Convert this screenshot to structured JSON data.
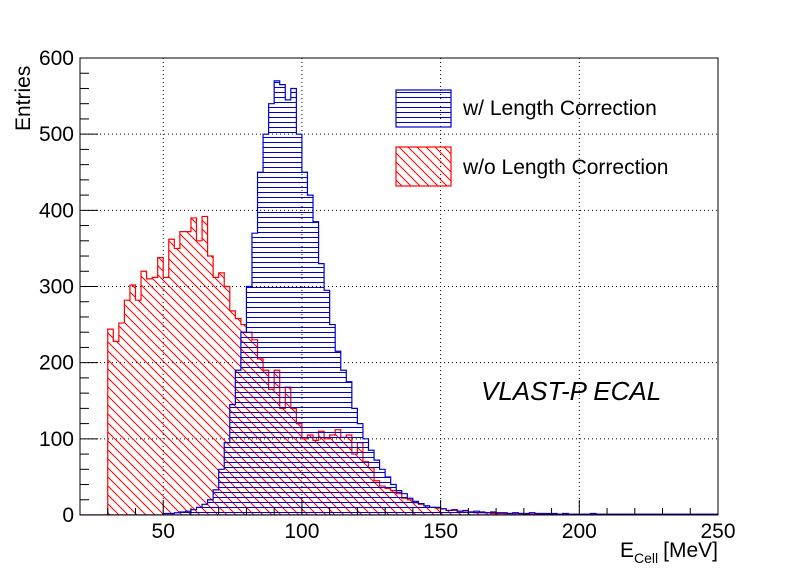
{
  "chart_data": {
    "type": "histogram",
    "annotation": "VLAST-P ECAL",
    "xlabel": {
      "main": "E",
      "sub": "Cell",
      "unit": "[MeV]"
    },
    "ylabel": "Entries",
    "xlim": [
      20,
      250
    ],
    "ylim": [
      0,
      600
    ],
    "x_ticks": [
      50,
      100,
      150,
      200,
      250
    ],
    "y_ticks": [
      0,
      100,
      200,
      300,
      400,
      500,
      600
    ],
    "grid": true,
    "bin_width": 2,
    "x_start": 20,
    "legend": [
      {
        "label": "w/ Length Correction",
        "color": "#0000cc",
        "hatch": "horizontal"
      },
      {
        "label": "w/o Length Correction",
        "color": "#ff0000",
        "hatch": "diagonal"
      }
    ],
    "legend_position": "top-right",
    "series": [
      {
        "name": "w/ Length Correction",
        "color": "#0000cc",
        "values": [
          0,
          0,
          0,
          0,
          0,
          0,
          0,
          0,
          0,
          0,
          0,
          0,
          0,
          0,
          0,
          2,
          2,
          3,
          4,
          5,
          7,
          10,
          14,
          20,
          33,
          60,
          95,
          145,
          190,
          240,
          300,
          370,
          450,
          500,
          540,
          570,
          565,
          545,
          560,
          500,
          450,
          420,
          385,
          330,
          295,
          250,
          215,
          190,
          175,
          140,
          120,
          100,
          85,
          72,
          60,
          50,
          40,
          32,
          28,
          22,
          18,
          15,
          12,
          10,
          10,
          8,
          6,
          7,
          5,
          6,
          4,
          5,
          4,
          3,
          4,
          3,
          3,
          2,
          3,
          2,
          2,
          3,
          2,
          2,
          2,
          2,
          1,
          2,
          1,
          1,
          1,
          1,
          2,
          1,
          1,
          1,
          1,
          1,
          1,
          1,
          1,
          1,
          1,
          1,
          1,
          1,
          1,
          1,
          1,
          1,
          1,
          1,
          1,
          1,
          1
        ]
      },
      {
        "name": "w/o Length Correction",
        "color": "#ff0000",
        "values": [
          0,
          0,
          0,
          0,
          0,
          244,
          228,
          252,
          282,
          302,
          282,
          320,
          310,
          312,
          338,
          312,
          362,
          350,
          372,
          372,
          390,
          360,
          392,
          340,
          312,
          318,
          300,
          268,
          258,
          250,
          240,
          230,
          205,
          190,
          165,
          190,
          140,
          168,
          140,
          120,
          100,
          105,
          98,
          110,
          100,
          105,
          112,
          102,
          105,
          80,
          95,
          70,
          62,
          45,
          38,
          35,
          32,
          28,
          22,
          20,
          16,
          14,
          12,
          10,
          9,
          8,
          6,
          6,
          5,
          4,
          4,
          3,
          3,
          3,
          2,
          2,
          2,
          2,
          2,
          2,
          1,
          1,
          1,
          1,
          1,
          1,
          1,
          1,
          1,
          1,
          1,
          1,
          1,
          1,
          1,
          1,
          1,
          1,
          1,
          1,
          1,
          1,
          1,
          1,
          1,
          1,
          1,
          1,
          1,
          1,
          1,
          1,
          1,
          1,
          1
        ]
      }
    ]
  }
}
